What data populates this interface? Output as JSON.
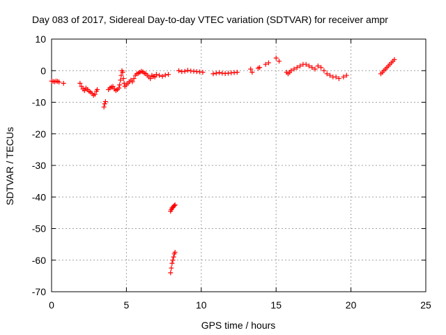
{
  "chart_data": {
    "type": "scatter",
    "title": "Day 083 of 2017, Sidereal Day-to-day VTEC variation (SDTVAR) for receiver ampr",
    "xlabel": "GPS time / hours",
    "ylabel": "SDTVAR / TECUs",
    "xlim": [
      0,
      25
    ],
    "ylim": [
      -70,
      10
    ],
    "xticks": [
      0,
      5,
      10,
      15,
      20,
      25
    ],
    "yticks": [
      -70,
      -60,
      -50,
      -40,
      -30,
      -20,
      -10,
      0,
      10
    ],
    "grid": true,
    "marker": "+",
    "color": "#ff0000",
    "series": [
      {
        "name": "SDTVAR",
        "x": [
          0.0,
          0.1,
          0.2,
          0.3,
          0.4,
          0.5,
          0.8,
          1.9,
          2.0,
          2.1,
          2.2,
          2.3,
          2.4,
          2.5,
          2.6,
          2.7,
          2.8,
          2.9,
          3.0,
          3.05,
          3.5,
          3.55,
          3.6,
          3.8,
          3.9,
          4.0,
          4.1,
          4.2,
          4.3,
          4.4,
          4.5,
          4.55,
          4.6,
          4.65,
          4.7,
          4.75,
          4.8,
          4.85,
          4.9,
          5.0,
          5.1,
          5.2,
          5.3,
          5.4,
          5.5,
          5.6,
          5.7,
          5.8,
          5.9,
          6.0,
          6.1,
          6.2,
          6.3,
          6.4,
          6.5,
          6.6,
          6.7,
          6.8,
          6.9,
          7.0,
          7.2,
          7.4,
          7.6,
          7.8,
          7.95,
          8.0,
          8.05,
          8.1,
          8.15,
          8.2,
          8.25,
          7.95,
          8.0,
          8.05,
          8.1,
          8.15,
          8.2,
          8.25,
          8.5,
          8.7,
          8.9,
          9.1,
          9.3,
          9.5,
          9.7,
          9.9,
          10.1,
          10.8,
          11.0,
          11.2,
          11.4,
          11.6,
          11.8,
          12.0,
          12.2,
          12.4,
          13.3,
          13.4,
          13.8,
          13.9,
          14.3,
          14.5,
          15.0,
          15.2,
          15.7,
          15.8,
          15.9,
          16.0,
          16.2,
          16.4,
          16.6,
          16.8,
          17.0,
          17.2,
          17.4,
          17.6,
          17.8,
          18.0,
          18.2,
          18.4,
          18.6,
          18.8,
          19.0,
          19.2,
          19.5,
          19.7,
          22.0,
          22.1,
          22.2,
          22.3,
          22.4,
          22.5,
          22.6,
          22.7,
          22.8,
          22.9
        ],
        "y": [
          -3.3,
          -3.4,
          -3.5,
          -3.3,
          -3.4,
          -3.6,
          -4.0,
          -4.0,
          -5.0,
          -5.8,
          -6.3,
          -5.5,
          -6.0,
          -6.5,
          -6.8,
          -7.2,
          -7.8,
          -7.5,
          -6.5,
          -6.0,
          -11.5,
          -10.5,
          -9.8,
          -6.0,
          -5.5,
          -5.2,
          -5.0,
          -5.8,
          -6.3,
          -6.0,
          -5.5,
          -4.5,
          -3.0,
          -1.5,
          0.0,
          -0.5,
          -2.5,
          -4.0,
          -5.0,
          -4.5,
          -4.0,
          -3.5,
          -3.0,
          -3.5,
          -2.5,
          -1.5,
          -1.0,
          -0.8,
          -0.5,
          -0.2,
          -0.4,
          -0.8,
          -1.0,
          -1.5,
          -2.0,
          -2.5,
          -1.5,
          -1.8,
          -2.0,
          -1.2,
          -1.5,
          -1.8,
          -1.4,
          -1.2,
          -44.5,
          -44.0,
          -43.5,
          -43.3,
          -43.0,
          -42.7,
          -42.5,
          -64.0,
          -62.5,
          -61.0,
          -60.0,
          -59.0,
          -58.0,
          -57.5,
          0.0,
          -0.3,
          -0.2,
          0.1,
          -0.1,
          -0.2,
          -0.3,
          -0.4,
          -0.5,
          -1.0,
          -0.8,
          -0.6,
          -0.8,
          -0.9,
          -0.8,
          -0.7,
          -0.6,
          -0.5,
          0.5,
          -0.5,
          0.8,
          1.0,
          2.0,
          2.5,
          4.0,
          3.0,
          -0.5,
          -1.0,
          -0.5,
          0.0,
          0.5,
          1.0,
          1.5,
          2.0,
          2.0,
          1.5,
          1.0,
          0.5,
          1.5,
          1.0,
          0.0,
          -1.0,
          -1.5,
          -2.0,
          -2.0,
          -2.5,
          -2.0,
          -1.5,
          -1.0,
          -0.5,
          0.0,
          0.5,
          1.0,
          1.5,
          2.0,
          2.5,
          3.0,
          3.5
        ]
      }
    ]
  }
}
